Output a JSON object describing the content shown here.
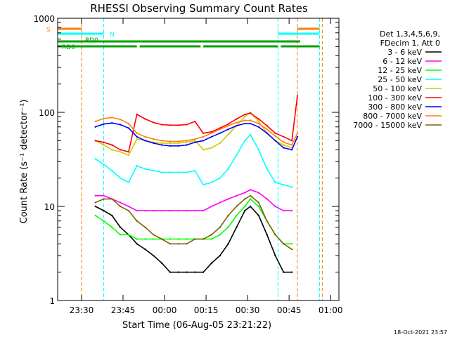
{
  "chart_data": {
    "type": "line",
    "title": "RHESSI Observing Summary Count Rates",
    "xlabel": "Start Time (06-Aug-05 23:21:22)",
    "ylabel": "Count Rate (s⁻¹ detector⁻¹)",
    "yscale": "log",
    "ylim": [
      1,
      1000
    ],
    "xlim": [
      "23:21:22",
      "01:03:00"
    ],
    "x_ticks": [
      "23:30",
      "23:45",
      "00:00",
      "00:15",
      "00:30",
      "00:45",
      "01:00"
    ],
    "y_ticks": [
      "1",
      "10",
      "100",
      "1000"
    ],
    "legend_header": [
      "Det 1,3,4,5,6,9,",
      "FDecim 1, Att 0"
    ],
    "legend_position": "right",
    "timestamp": "18-Oct-2021 23:57",
    "flags": [
      {
        "label": "S",
        "color": "#ff8000",
        "segments": [
          [
            "23:21:22",
            "23:30"
          ],
          [
            "00:48",
            "00:56"
          ]
        ]
      },
      {
        "label": "N",
        "color": "#00ffff",
        "segments": [
          [
            "23:21:22",
            "23:38"
          ],
          [
            "00:41",
            "00:56"
          ]
        ]
      },
      {
        "label": "RD0",
        "color": "#00a000",
        "segments": [
          [
            "23:21:22",
            "00:49"
          ]
        ]
      },
      {
        "label": "RD6",
        "color": "#00a000",
        "segments": [
          [
            "23:21:22",
            "23:50"
          ],
          [
            "23:51",
            "00:13"
          ],
          [
            "00:14",
            "00:41"
          ],
          [
            "00:42",
            "00:56"
          ]
        ]
      }
    ],
    "vlines": [
      {
        "time": "23:30",
        "color": "#ff8000"
      },
      {
        "time": "23:38",
        "color": "#00ffff"
      },
      {
        "time": "00:41",
        "color": "#00ffff"
      },
      {
        "time": "00:48",
        "color": "#ff8000"
      },
      {
        "time": "00:56",
        "color": "#00ffff"
      },
      {
        "time": "00:57",
        "color": "#ff8000"
      }
    ],
    "x": [
      "23:32",
      "23:35",
      "23:38",
      "23:41",
      "23:44",
      "23:47",
      "23:50",
      "23:53",
      "23:56",
      "23:59",
      "00:02",
      "00:05",
      "00:08",
      "00:11",
      "00:14",
      "00:17",
      "00:20",
      "00:23",
      "00:26",
      "00:29",
      "00:31",
      "00:34",
      "00:37",
      "00:40",
      "00:43",
      "00:46",
      "00:48"
    ],
    "series": [
      {
        "name": "3 - 6 keV",
        "color": "#000000",
        "values": [
          null,
          10,
          9,
          8,
          6,
          5,
          4,
          3.5,
          3,
          2.5,
          2,
          2,
          2,
          2,
          2,
          2.5,
          3,
          4,
          6,
          9,
          10,
          8,
          5,
          3,
          2,
          2,
          null
        ]
      },
      {
        "name": "6 - 12 keV",
        "color": "#ff00ff",
        "values": [
          null,
          13,
          13,
          12,
          11,
          10,
          9,
          9,
          9,
          9,
          9,
          9,
          9,
          9,
          9,
          10,
          11,
          12,
          13,
          14,
          15,
          14,
          12,
          10,
          9,
          9,
          null
        ]
      },
      {
        "name": "12 - 25 keV",
        "color": "#00ff00",
        "values": [
          null,
          8,
          7,
          6,
          5,
          5,
          4.5,
          4.5,
          4.5,
          4.5,
          4.5,
          4.5,
          4.5,
          4.5,
          4.5,
          4.5,
          5,
          6,
          8,
          10,
          12,
          10,
          7,
          5,
          4,
          4,
          null
        ]
      },
      {
        "name": "25 - 50 keV",
        "color": "#00ffff",
        "values": [
          null,
          32,
          28,
          24,
          20,
          18,
          27,
          25,
          24,
          23,
          23,
          23,
          23,
          24,
          17,
          18,
          20,
          25,
          35,
          50,
          58,
          40,
          25,
          18,
          17,
          16,
          null
        ]
      },
      {
        "name": "50 - 100 keV",
        "color": "#cccc00",
        "values": [
          null,
          50,
          45,
          40,
          38,
          35,
          52,
          50,
          48,
          47,
          47,
          47,
          48,
          50,
          40,
          42,
          47,
          58,
          72,
          90,
          100,
          80,
          60,
          50,
          45,
          42,
          null
        ]
      },
      {
        "name": "100 - 300 keV",
        "color": "#ff0000",
        "values": [
          null,
          50,
          48,
          45,
          40,
          38,
          95,
          85,
          78,
          74,
          73,
          73,
          74,
          80,
          60,
          62,
          68,
          75,
          85,
          95,
          98,
          85,
          72,
          60,
          55,
          50,
          150
        ]
      },
      {
        "name": "300 - 800 keV",
        "color": "#0000ff",
        "values": [
          null,
          70,
          75,
          77,
          74,
          68,
          55,
          50,
          47,
          45,
          44,
          44,
          45,
          48,
          50,
          55,
          60,
          66,
          72,
          76,
          76,
          70,
          60,
          50,
          42,
          40,
          55
        ]
      },
      {
        "name": "800 - 7000 keV",
        "color": "#ff8000",
        "values": [
          null,
          80,
          86,
          88,
          84,
          76,
          60,
          55,
          52,
          50,
          49,
          49,
          50,
          52,
          55,
          60,
          66,
          72,
          78,
          82,
          82,
          76,
          66,
          56,
          48,
          45,
          60
        ]
      },
      {
        "name": "7000 - 15000 keV",
        "color": "#806000",
        "values": [
          null,
          11,
          12,
          12,
          10,
          9,
          7,
          6,
          5,
          4.5,
          4,
          4,
          4,
          4.5,
          4.5,
          5,
          6,
          8,
          10,
          12,
          13,
          11,
          7,
          5,
          4,
          3.5,
          null
        ]
      }
    ]
  }
}
